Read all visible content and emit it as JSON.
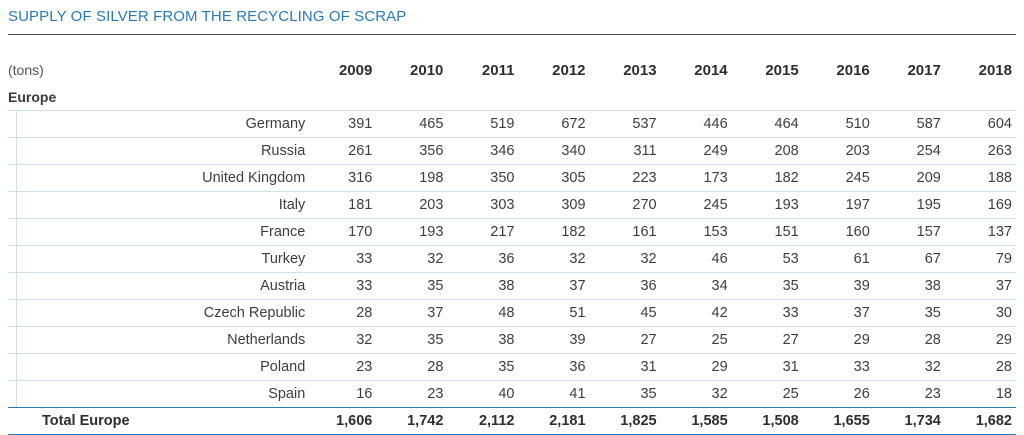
{
  "title": "SUPPLY OF SILVER FROM THE RECYCLING OF SCRAP",
  "unit_label": "(tons)",
  "years": [
    "2009",
    "2010",
    "2011",
    "2012",
    "2013",
    "2014",
    "2015",
    "2016",
    "2017",
    "2018"
  ],
  "region": "Europe",
  "rows": [
    {
      "name": "Germany",
      "values": [
        "391",
        "465",
        "519",
        "672",
        "537",
        "446",
        "464",
        "510",
        "587",
        "604"
      ]
    },
    {
      "name": "Russia",
      "values": [
        "261",
        "356",
        "346",
        "340",
        "311",
        "249",
        "208",
        "203",
        "254",
        "263"
      ]
    },
    {
      "name": "United Kingdom",
      "values": [
        "316",
        "198",
        "350",
        "305",
        "223",
        "173",
        "182",
        "245",
        "209",
        "188"
      ]
    },
    {
      "name": "Italy",
      "values": [
        "181",
        "203",
        "303",
        "309",
        "270",
        "245",
        "193",
        "197",
        "195",
        "169"
      ]
    },
    {
      "name": "France",
      "values": [
        "170",
        "193",
        "217",
        "182",
        "161",
        "153",
        "151",
        "160",
        "157",
        "137"
      ]
    },
    {
      "name": "Turkey",
      "values": [
        "33",
        "32",
        "36",
        "32",
        "32",
        "46",
        "53",
        "61",
        "67",
        "79"
      ]
    },
    {
      "name": "Austria",
      "values": [
        "33",
        "35",
        "38",
        "37",
        "36",
        "34",
        "35",
        "39",
        "38",
        "37"
      ]
    },
    {
      "name": "Czech Republic",
      "values": [
        "28",
        "37",
        "48",
        "51",
        "45",
        "42",
        "33",
        "37",
        "35",
        "30"
      ]
    },
    {
      "name": "Netherlands",
      "values": [
        "32",
        "35",
        "38",
        "39",
        "27",
        "25",
        "27",
        "29",
        "28",
        "29"
      ]
    },
    {
      "name": "Poland",
      "values": [
        "23",
        "28",
        "35",
        "36",
        "31",
        "29",
        "31",
        "33",
        "32",
        "28"
      ]
    },
    {
      "name": "Spain",
      "values": [
        "16",
        "23",
        "40",
        "41",
        "35",
        "32",
        "25",
        "26",
        "23",
        "18"
      ]
    }
  ],
  "total": {
    "name": "Total Europe",
    "values": [
      "1,606",
      "1,742",
      "2,112",
      "2,181",
      "1,825",
      "1,585",
      "1,508",
      "1,655",
      "1,734",
      "1,682"
    ]
  },
  "colors": {
    "title": "#2a7ab8",
    "row_rule": "#cfe0ef",
    "total_rule": "#2a7ab8"
  }
}
